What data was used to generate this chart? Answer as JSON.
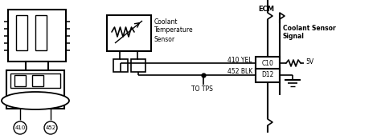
{
  "labels": {
    "coolant_temp": [
      "Coolant",
      "Temperature",
      "Sensor"
    ],
    "ecm": "ECM",
    "coolant_signal": [
      "Coolant Sensor",
      "Signal"
    ],
    "wire1": "410 YEL",
    "wire2": "452 BLK",
    "pin1": "C10",
    "pin2": "D12",
    "voltage": "5V",
    "to_tps": "TO TPS",
    "pin410": "410",
    "pin452": "452"
  },
  "colors": {
    "line": "#000000",
    "bg": "#ffffff"
  }
}
